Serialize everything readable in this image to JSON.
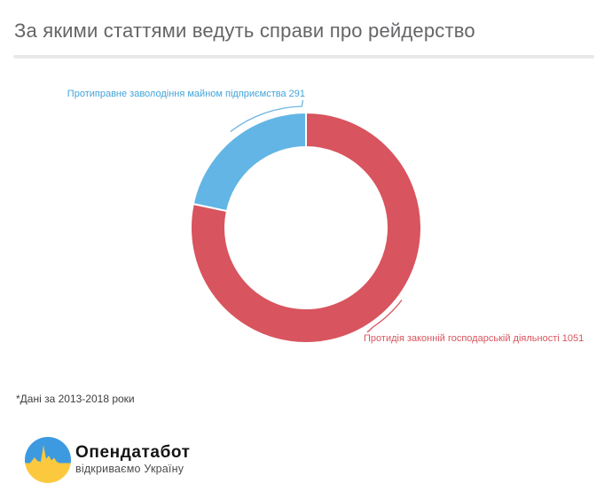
{
  "header": {
    "title": "За якими статтями ведуть справи про рейдерство"
  },
  "chart_data": {
    "type": "pie",
    "donut": true,
    "title": "За якими статтями ведуть справи про рейдерство",
    "start_angle_deg": 0,
    "direction": "clockwise",
    "segments": [
      {
        "label": "Протидія законній господарській діяльності",
        "value": 1051,
        "color": "#d8545e",
        "annotation": "Протидія законній господарській діяльності 1051"
      },
      {
        "label": "Протиправне заволодіння майном підприємства",
        "value": 291,
        "color": "#62b5e4",
        "annotation": "Протиправне заволодіння майном підприємства 291"
      }
    ]
  },
  "footnote": "*Дані за 2013-2018 роки",
  "logo": {
    "name": "Опендатабот",
    "tagline": "відкриваємо Україну",
    "colors": {
      "blue": "#3d9ae0",
      "yellow": "#fcc93e"
    }
  }
}
